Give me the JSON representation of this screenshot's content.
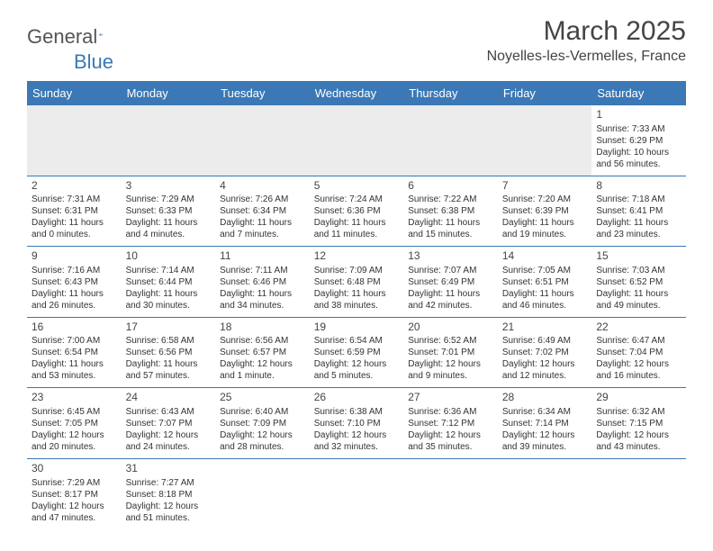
{
  "logo": {
    "text_a": "General",
    "text_b": "Blue"
  },
  "title": "March 2025",
  "location": "Noyelles-les-Vermelles, France",
  "colors": {
    "header_bg": "#3b78b5",
    "header_text": "#ffffff",
    "grid_line": "#3b78b5",
    "lead_bg": "#ececec",
    "text": "#333333"
  },
  "day_headers": [
    "Sunday",
    "Monday",
    "Tuesday",
    "Wednesday",
    "Thursday",
    "Friday",
    "Saturday"
  ],
  "weeks": [
    [
      null,
      null,
      null,
      null,
      null,
      null,
      {
        "n": "1",
        "sr": "Sunrise: 7:33 AM",
        "ss": "Sunset: 6:29 PM",
        "d1": "Daylight: 10 hours",
        "d2": "and 56 minutes."
      }
    ],
    [
      {
        "n": "2",
        "sr": "Sunrise: 7:31 AM",
        "ss": "Sunset: 6:31 PM",
        "d1": "Daylight: 11 hours",
        "d2": "and 0 minutes."
      },
      {
        "n": "3",
        "sr": "Sunrise: 7:29 AM",
        "ss": "Sunset: 6:33 PM",
        "d1": "Daylight: 11 hours",
        "d2": "and 4 minutes."
      },
      {
        "n": "4",
        "sr": "Sunrise: 7:26 AM",
        "ss": "Sunset: 6:34 PM",
        "d1": "Daylight: 11 hours",
        "d2": "and 7 minutes."
      },
      {
        "n": "5",
        "sr": "Sunrise: 7:24 AM",
        "ss": "Sunset: 6:36 PM",
        "d1": "Daylight: 11 hours",
        "d2": "and 11 minutes."
      },
      {
        "n": "6",
        "sr": "Sunrise: 7:22 AM",
        "ss": "Sunset: 6:38 PM",
        "d1": "Daylight: 11 hours",
        "d2": "and 15 minutes."
      },
      {
        "n": "7",
        "sr": "Sunrise: 7:20 AM",
        "ss": "Sunset: 6:39 PM",
        "d1": "Daylight: 11 hours",
        "d2": "and 19 minutes."
      },
      {
        "n": "8",
        "sr": "Sunrise: 7:18 AM",
        "ss": "Sunset: 6:41 PM",
        "d1": "Daylight: 11 hours",
        "d2": "and 23 minutes."
      }
    ],
    [
      {
        "n": "9",
        "sr": "Sunrise: 7:16 AM",
        "ss": "Sunset: 6:43 PM",
        "d1": "Daylight: 11 hours",
        "d2": "and 26 minutes."
      },
      {
        "n": "10",
        "sr": "Sunrise: 7:14 AM",
        "ss": "Sunset: 6:44 PM",
        "d1": "Daylight: 11 hours",
        "d2": "and 30 minutes."
      },
      {
        "n": "11",
        "sr": "Sunrise: 7:11 AM",
        "ss": "Sunset: 6:46 PM",
        "d1": "Daylight: 11 hours",
        "d2": "and 34 minutes."
      },
      {
        "n": "12",
        "sr": "Sunrise: 7:09 AM",
        "ss": "Sunset: 6:48 PM",
        "d1": "Daylight: 11 hours",
        "d2": "and 38 minutes."
      },
      {
        "n": "13",
        "sr": "Sunrise: 7:07 AM",
        "ss": "Sunset: 6:49 PM",
        "d1": "Daylight: 11 hours",
        "d2": "and 42 minutes."
      },
      {
        "n": "14",
        "sr": "Sunrise: 7:05 AM",
        "ss": "Sunset: 6:51 PM",
        "d1": "Daylight: 11 hours",
        "d2": "and 46 minutes."
      },
      {
        "n": "15",
        "sr": "Sunrise: 7:03 AM",
        "ss": "Sunset: 6:52 PM",
        "d1": "Daylight: 11 hours",
        "d2": "and 49 minutes."
      }
    ],
    [
      {
        "n": "16",
        "sr": "Sunrise: 7:00 AM",
        "ss": "Sunset: 6:54 PM",
        "d1": "Daylight: 11 hours",
        "d2": "and 53 minutes."
      },
      {
        "n": "17",
        "sr": "Sunrise: 6:58 AM",
        "ss": "Sunset: 6:56 PM",
        "d1": "Daylight: 11 hours",
        "d2": "and 57 minutes."
      },
      {
        "n": "18",
        "sr": "Sunrise: 6:56 AM",
        "ss": "Sunset: 6:57 PM",
        "d1": "Daylight: 12 hours",
        "d2": "and 1 minute."
      },
      {
        "n": "19",
        "sr": "Sunrise: 6:54 AM",
        "ss": "Sunset: 6:59 PM",
        "d1": "Daylight: 12 hours",
        "d2": "and 5 minutes."
      },
      {
        "n": "20",
        "sr": "Sunrise: 6:52 AM",
        "ss": "Sunset: 7:01 PM",
        "d1": "Daylight: 12 hours",
        "d2": "and 9 minutes."
      },
      {
        "n": "21",
        "sr": "Sunrise: 6:49 AM",
        "ss": "Sunset: 7:02 PM",
        "d1": "Daylight: 12 hours",
        "d2": "and 12 minutes."
      },
      {
        "n": "22",
        "sr": "Sunrise: 6:47 AM",
        "ss": "Sunset: 7:04 PM",
        "d1": "Daylight: 12 hours",
        "d2": "and 16 minutes."
      }
    ],
    [
      {
        "n": "23",
        "sr": "Sunrise: 6:45 AM",
        "ss": "Sunset: 7:05 PM",
        "d1": "Daylight: 12 hours",
        "d2": "and 20 minutes."
      },
      {
        "n": "24",
        "sr": "Sunrise: 6:43 AM",
        "ss": "Sunset: 7:07 PM",
        "d1": "Daylight: 12 hours",
        "d2": "and 24 minutes."
      },
      {
        "n": "25",
        "sr": "Sunrise: 6:40 AM",
        "ss": "Sunset: 7:09 PM",
        "d1": "Daylight: 12 hours",
        "d2": "and 28 minutes."
      },
      {
        "n": "26",
        "sr": "Sunrise: 6:38 AM",
        "ss": "Sunset: 7:10 PM",
        "d1": "Daylight: 12 hours",
        "d2": "and 32 minutes."
      },
      {
        "n": "27",
        "sr": "Sunrise: 6:36 AM",
        "ss": "Sunset: 7:12 PM",
        "d1": "Daylight: 12 hours",
        "d2": "and 35 minutes."
      },
      {
        "n": "28",
        "sr": "Sunrise: 6:34 AM",
        "ss": "Sunset: 7:14 PM",
        "d1": "Daylight: 12 hours",
        "d2": "and 39 minutes."
      },
      {
        "n": "29",
        "sr": "Sunrise: 6:32 AM",
        "ss": "Sunset: 7:15 PM",
        "d1": "Daylight: 12 hours",
        "d2": "and 43 minutes."
      }
    ],
    [
      {
        "n": "30",
        "sr": "Sunrise: 7:29 AM",
        "ss": "Sunset: 8:17 PM",
        "d1": "Daylight: 12 hours",
        "d2": "and 47 minutes."
      },
      {
        "n": "31",
        "sr": "Sunrise: 7:27 AM",
        "ss": "Sunset: 8:18 PM",
        "d1": "Daylight: 12 hours",
        "d2": "and 51 minutes."
      },
      null,
      null,
      null,
      null,
      null
    ]
  ]
}
